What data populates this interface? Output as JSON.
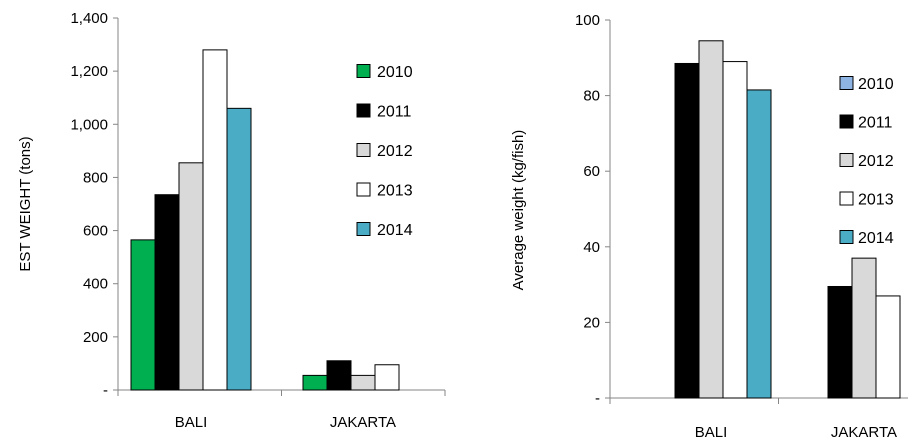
{
  "chart_data": [
    {
      "type": "bar",
      "categories": [
        "BALI",
        "JAKARTA"
      ],
      "ylabel": "EST WEIGHT  (tons)",
      "xlabel": "",
      "ylim": [
        0,
        1400
      ],
      "yticks": [
        0,
        200,
        400,
        600,
        800,
        1000,
        1200,
        1400
      ],
      "ytick_labels": [
        "-",
        "200",
        "400",
        "600",
        "800",
        "1,000",
        "1,200",
        "1,400"
      ],
      "legend_position": "right",
      "grid": false,
      "series": [
        {
          "name": "2010",
          "color": "#00b050",
          "values": [
            565,
            55
          ]
        },
        {
          "name": "2011",
          "color": "#000000",
          "values": [
            735,
            110
          ]
        },
        {
          "name": "2012",
          "color": "#d9d9d9",
          "values": [
            855,
            55
          ]
        },
        {
          "name": "2013",
          "color": "#ffffff",
          "values": [
            1280,
            95
          ]
        },
        {
          "name": "2014",
          "color": "#4bacc6",
          "values": [
            1060,
            null
          ]
        }
      ]
    },
    {
      "type": "bar",
      "categories": [
        "BALI",
        "JAKARTA"
      ],
      "ylabel": "Average weight (kg/fish)",
      "xlabel": "",
      "ylim": [
        0,
        100
      ],
      "yticks": [
        0,
        20,
        40,
        60,
        80,
        100
      ],
      "ytick_labels": [
        "-",
        "20",
        "40",
        "60",
        "80",
        "100"
      ],
      "legend_position": "right",
      "grid": false,
      "series": [
        {
          "name": "2010",
          "color": "#8eb4e3",
          "values": [
            null,
            null
          ]
        },
        {
          "name": "2011",
          "color": "#000000",
          "values": [
            88.5,
            29.5
          ]
        },
        {
          "name": "2012",
          "color": "#d9d9d9",
          "values": [
            94.5,
            37
          ]
        },
        {
          "name": "2013",
          "color": "#ffffff",
          "values": [
            89,
            27
          ]
        },
        {
          "name": "2014",
          "color": "#4bacc6",
          "values": [
            81.5,
            null
          ]
        }
      ]
    }
  ]
}
